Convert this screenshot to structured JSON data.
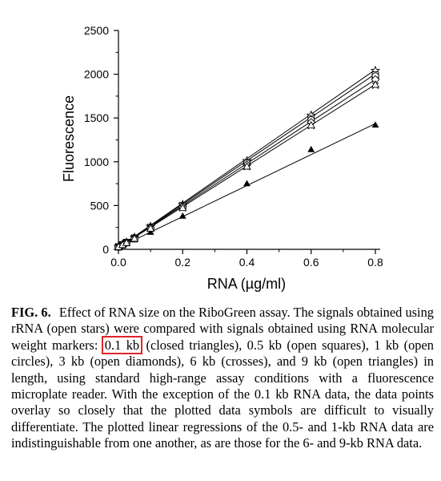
{
  "chart_data": {
    "type": "scatter",
    "xlabel": "RNA (µg/ml)",
    "ylabel": "Fluorescence",
    "xlim": [
      0,
      0.8
    ],
    "ylim": [
      0,
      2500
    ],
    "xticks": [
      "0.0",
      "0.2",
      "0.4",
      "0.6",
      "0.8"
    ],
    "yticks": [
      "0",
      "500",
      "1000",
      "1500",
      "2000",
      "2500"
    ],
    "grid": false,
    "x": [
      0,
      0.0125,
      0.025,
      0.05,
      0.1,
      0.2,
      0.4,
      0.6,
      0.8
    ],
    "series": [
      {
        "marker": "open-star",
        "values": [
          30,
          55,
          80,
          135,
          260,
          510,
          1010,
          1530,
          2040
        ]
      },
      {
        "marker": "filled-triangle",
        "values": [
          25,
          45,
          70,
          110,
          195,
          380,
          750,
          1140,
          1420
        ]
      },
      {
        "marker": "open-square",
        "values": [
          28,
          52,
          78,
          128,
          250,
          500,
          990,
          1490,
          1990
        ]
      },
      {
        "marker": "open-circle",
        "values": [
          28,
          52,
          78,
          128,
          248,
          495,
          985,
          1480,
          1980
        ]
      },
      {
        "marker": "open-diamond",
        "values": [
          27,
          50,
          75,
          125,
          245,
          485,
          965,
          1450,
          1940
        ]
      },
      {
        "marker": "cross",
        "values": [
          26,
          49,
          72,
          120,
          235,
          470,
          940,
          1410,
          1870
        ]
      },
      {
        "marker": "open-triangle",
        "values": [
          26,
          49,
          73,
          121,
          237,
          472,
          945,
          1415,
          1880
        ]
      }
    ],
    "regression_lines": [
      {
        "slope": 2540,
        "intercept": 20
      },
      {
        "slope": 1770,
        "intercept": 20
      },
      {
        "slope": 2480,
        "intercept": 20
      },
      {
        "slope": 2400,
        "intercept": 20
      },
      {
        "slope": 2330,
        "intercept": 20
      }
    ]
  },
  "caption": {
    "fig_label": "FIG. 6.",
    "text_before": "Effect of RNA size on the RiboGreen assay. The signals obtained using rRNA (open stars) were compared with signals obtained using RNA molecular weight markers:",
    "highlight": "0.1 kb",
    "text_after": "(closed triangles), 0.5 kb (open squares), 1 kb (open circles), 3 kb (open diamonds), 6 kb (crosses), and 9 kb (open triangles) in length, using standard high-range assay conditions with a fluorescence microplate reader. With the exception of the 0.1 kb RNA data, the data points overlay so closely that the plotted data symbols are difficult to visually differentiate. The plotted linear regressions of the 0.5- and 1-kb RNA data are indistinguishable from one another, as are those for the 6- and 9-kb RNA data.",
    "highlight_color": "#e0242b"
  }
}
